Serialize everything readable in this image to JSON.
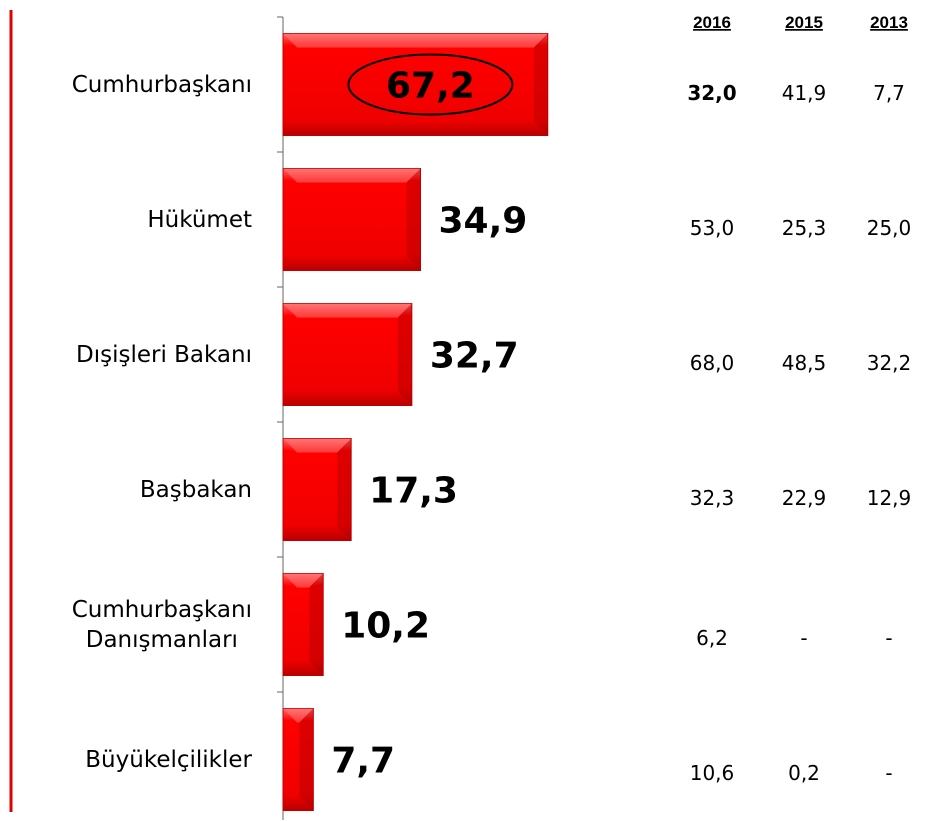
{
  "chart_data": {
    "type": "bar",
    "orientation": "horizontal",
    "categories": [
      "Cumhurbaşkanı",
      "Hükümet",
      "Dışişleri Bakanı",
      "Başbakan",
      "Cumhurbaşkanı\nDanışmanları",
      "Büyükelçilikler"
    ],
    "values": [
      67.2,
      34.9,
      32.7,
      17.3,
      10.2,
      7.7
    ],
    "value_labels": [
      "67,2",
      "34,9",
      "32,7",
      "17,3",
      "10,2",
      "7,7"
    ],
    "color": "#ff0000"
  },
  "table": {
    "columns": [
      "2016",
      "2015",
      "2013"
    ],
    "rows": [
      [
        "32,0",
        "41,9",
        "7,7"
      ],
      [
        "53,0",
        "25,3",
        "25,0"
      ],
      [
        "68,0",
        "48,5",
        "32,2"
      ],
      [
        "32,3",
        "22,9",
        "12,9"
      ],
      [
        "6,2",
        "-",
        "-"
      ],
      [
        "10,6",
        "0,2",
        "-"
      ]
    ]
  }
}
